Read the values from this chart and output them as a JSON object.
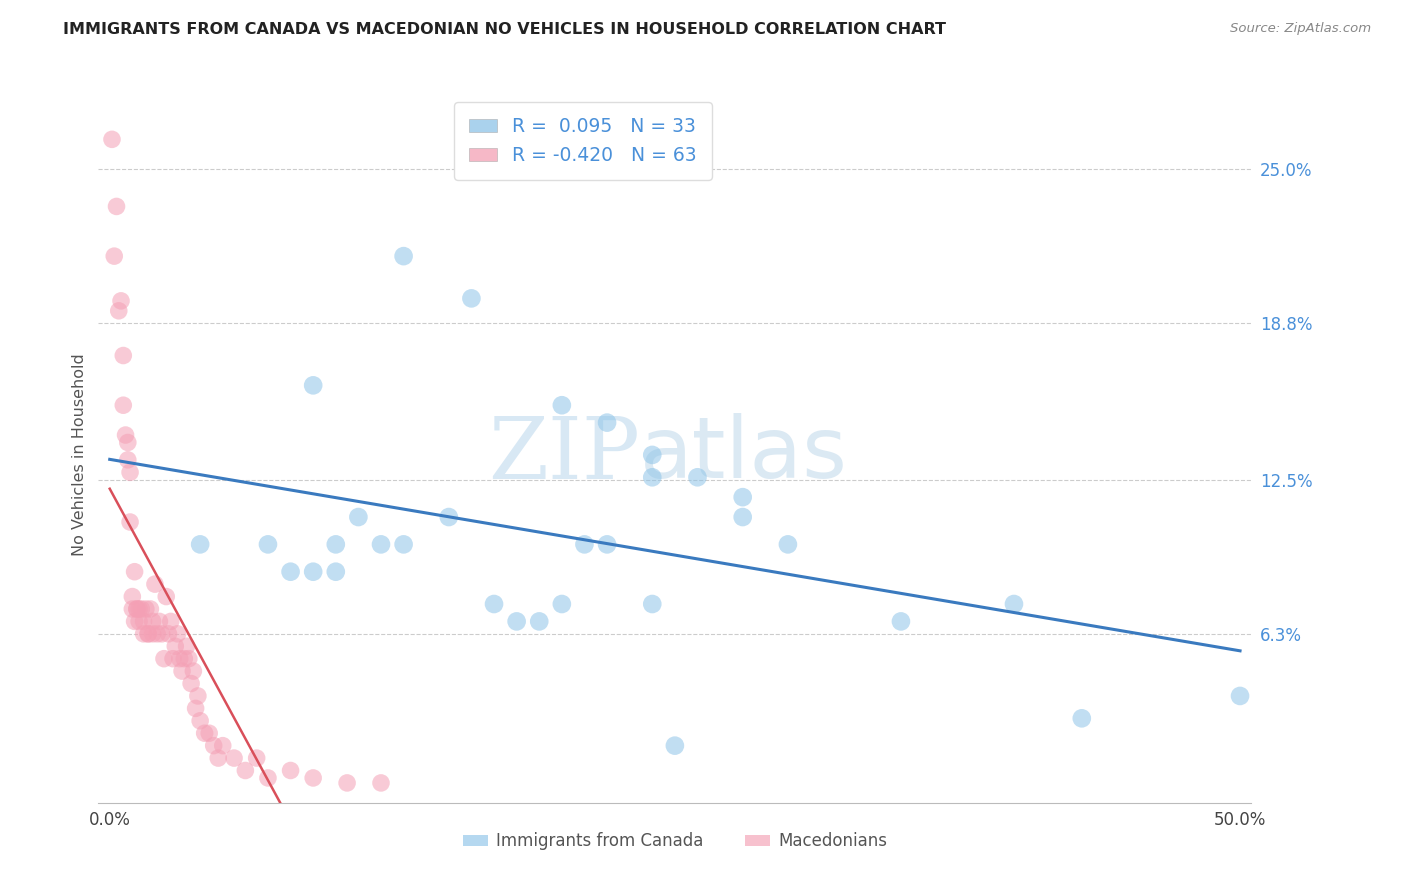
{
  "title": "IMMIGRANTS FROM CANADA VS MACEDONIAN NO VEHICLES IN HOUSEHOLD CORRELATION CHART",
  "source": "Source: ZipAtlas.com",
  "ylabel": "No Vehicles in Household",
  "ytick_labels": [
    "6.3%",
    "12.5%",
    "18.8%",
    "25.0%"
  ],
  "ytick_values": [
    0.063,
    0.125,
    0.188,
    0.25
  ],
  "xtick_labels": [
    "0.0%",
    "50.0%"
  ],
  "xtick_values": [
    0.0,
    0.5
  ],
  "xlim": [
    -0.005,
    0.505
  ],
  "ylim": [
    -0.005,
    0.275
  ],
  "watermark_zip": "ZIP",
  "watermark_atlas": "atlas",
  "legend_blue_r": "R =  0.095",
  "legend_blue_n": "N = 33",
  "legend_pink_r": "R = -0.420",
  "legend_pink_n": "N = 63",
  "legend_blue_label": "Immigrants from Canada",
  "legend_pink_label": "Macedonians",
  "blue_color": "#8ec4e8",
  "pink_color": "#f4a0b5",
  "trendline_blue_color": "#3a7abf",
  "trendline_pink_color": "#d94f5a",
  "axis_label_color": "#4a90d9",
  "blue_scatter_x": [
    0.13,
    0.16,
    0.09,
    0.2,
    0.22,
    0.24,
    0.24,
    0.26,
    0.28,
    0.04,
    0.07,
    0.08,
    0.09,
    0.11,
    0.12,
    0.13,
    0.15,
    0.17,
    0.18,
    0.19,
    0.2,
    0.21,
    0.22,
    0.24,
    0.28,
    0.3,
    0.35,
    0.4,
    0.43,
    0.5,
    0.1,
    0.1,
    0.25
  ],
  "blue_scatter_y": [
    0.215,
    0.198,
    0.163,
    0.155,
    0.148,
    0.135,
    0.126,
    0.126,
    0.118,
    0.099,
    0.099,
    0.088,
    0.088,
    0.11,
    0.099,
    0.099,
    0.11,
    0.075,
    0.068,
    0.068,
    0.075,
    0.099,
    0.099,
    0.075,
    0.11,
    0.099,
    0.068,
    0.075,
    0.029,
    0.038,
    0.099,
    0.088,
    0.018
  ],
  "pink_scatter_x": [
    0.001,
    0.002,
    0.003,
    0.004,
    0.005,
    0.006,
    0.006,
    0.007,
    0.008,
    0.008,
    0.009,
    0.009,
    0.01,
    0.01,
    0.011,
    0.011,
    0.012,
    0.012,
    0.013,
    0.013,
    0.014,
    0.015,
    0.015,
    0.016,
    0.017,
    0.017,
    0.018,
    0.019,
    0.019,
    0.02,
    0.021,
    0.022,
    0.023,
    0.024,
    0.025,
    0.026,
    0.027,
    0.028,
    0.029,
    0.03,
    0.031,
    0.032,
    0.033,
    0.034,
    0.035,
    0.036,
    0.037,
    0.038,
    0.039,
    0.04,
    0.042,
    0.044,
    0.046,
    0.048,
    0.05,
    0.055,
    0.06,
    0.065,
    0.07,
    0.08,
    0.09,
    0.105,
    0.12
  ],
  "pink_scatter_y": [
    0.262,
    0.215,
    0.235,
    0.193,
    0.197,
    0.175,
    0.155,
    0.143,
    0.14,
    0.133,
    0.128,
    0.108,
    0.078,
    0.073,
    0.088,
    0.068,
    0.073,
    0.073,
    0.068,
    0.073,
    0.073,
    0.068,
    0.063,
    0.073,
    0.063,
    0.063,
    0.073,
    0.063,
    0.068,
    0.083,
    0.063,
    0.068,
    0.063,
    0.053,
    0.078,
    0.063,
    0.068,
    0.053,
    0.058,
    0.063,
    0.053,
    0.048,
    0.053,
    0.058,
    0.053,
    0.043,
    0.048,
    0.033,
    0.038,
    0.028,
    0.023,
    0.023,
    0.018,
    0.013,
    0.018,
    0.013,
    0.008,
    0.013,
    0.005,
    0.008,
    0.005,
    0.003,
    0.003
  ]
}
